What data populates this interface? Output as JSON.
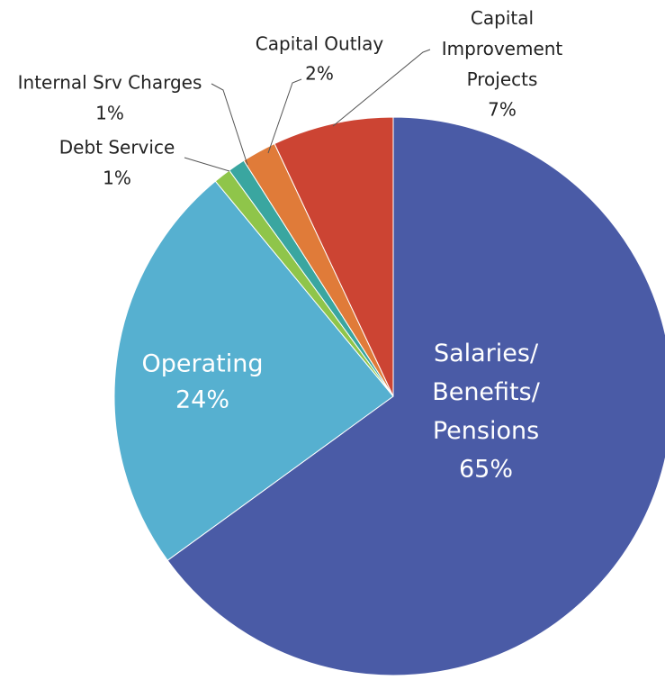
{
  "chart_data": {
    "type": "pie",
    "categories": [
      "Salaries/Benefits/Pensions",
      "Operating",
      "Debt Service",
      "Internal Srv Charges",
      "Capital Outlay",
      "Capital Improvement Projects"
    ],
    "values": [
      65,
      24,
      1,
      1,
      2,
      7
    ],
    "value_labels": [
      "65%",
      "24%",
      "1%",
      "1%",
      "2%",
      "7%"
    ],
    "colors": [
      "#4a5ba6",
      "#56b0d0",
      "#8fc54a",
      "#3aa6a0",
      "#e07b39",
      "#cc4433"
    ]
  }
}
